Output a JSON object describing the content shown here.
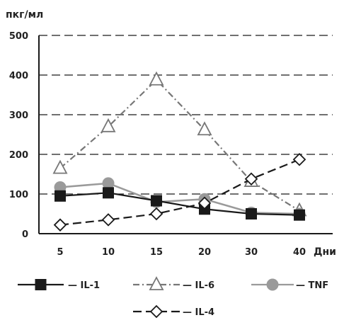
{
  "chart_data": {
    "type": "line",
    "ylabel": "пкг/мл",
    "xlabel": "Дни",
    "categories": [
      "5",
      "10",
      "15",
      "20",
      "30",
      "40"
    ],
    "ylim": [
      0,
      500
    ],
    "yticks": [
      "0",
      "100",
      "200",
      "300",
      "400",
      "500"
    ],
    "grid": "horizontal dashed",
    "legend_position": "bottom",
    "series": [
      {
        "name": "IL-1",
        "legend_label": "— IL-1",
        "values": [
          95,
          103,
          83,
          62,
          50,
          47
        ],
        "color": "#1a1a1a",
        "line": "solid",
        "marker": "square-filled"
      },
      {
        "name": "IL-6",
        "legend_label": "— IL-6",
        "values": [
          165,
          270,
          388,
          262,
          132,
          58
        ],
        "color": "#777777",
        "line": "dash-dot",
        "marker": "triangle-open"
      },
      {
        "name": "TNF",
        "legend_label": "— TNF",
        "values": [
          117,
          127,
          80,
          87,
          53,
          50
        ],
        "color": "#9a9a9a",
        "line": "solid",
        "marker": "circle-filled"
      },
      {
        "name": "IL-4",
        "legend_label": "— IL-4",
        "values": [
          22,
          35,
          50,
          77,
          138,
          187
        ],
        "color": "#1a1a1a",
        "line": "dashed",
        "marker": "diamond-open"
      }
    ]
  }
}
